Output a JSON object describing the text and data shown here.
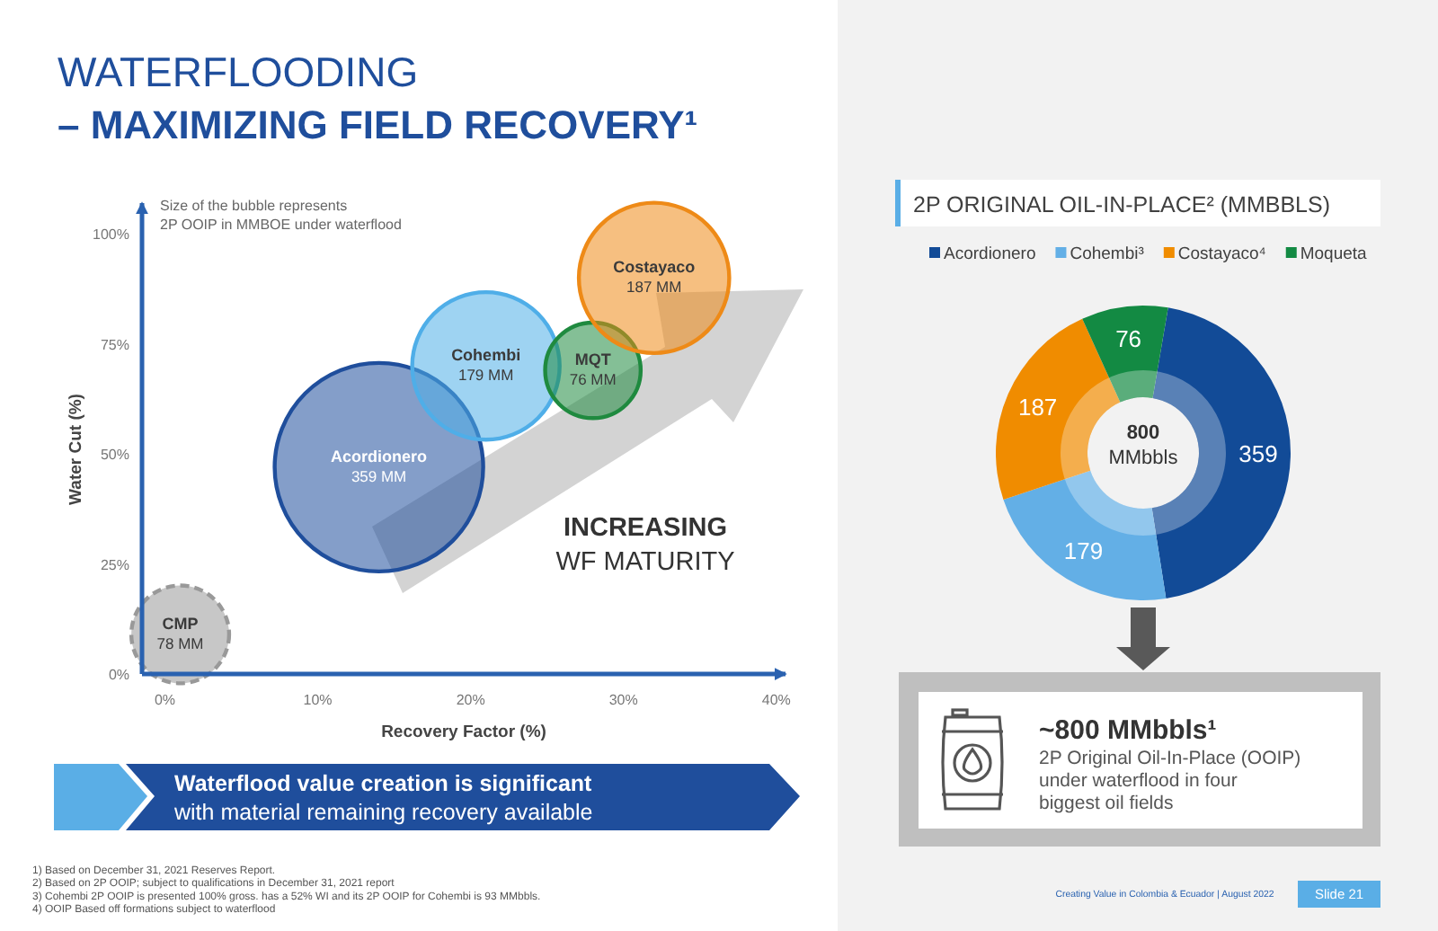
{
  "chart_data": [
    {
      "type": "bubble",
      "title": "WATERFLOODING",
      "subtitle": "– MAXIMIZING FIELD RECOVERY¹",
      "xlabel": "Recovery Factor (%)",
      "ylabel": "Water Cut (%)",
      "xlim": [
        -1.5,
        40.6
      ],
      "xticks": [
        {
          "value": 0,
          "label": "0%"
        },
        {
          "value": 10,
          "label": "10%"
        },
        {
          "value": 20,
          "label": "20%"
        },
        {
          "value": 30,
          "label": "30%"
        },
        {
          "value": 40,
          "label": "40%"
        }
      ],
      "ylim": [
        0,
        107
      ],
      "yticks": [
        {
          "value": 0,
          "label": "0%"
        },
        {
          "value": 25,
          "label": "25%"
        },
        {
          "value": 50,
          "label": "50%"
        },
        {
          "value": 75,
          "label": "75%"
        },
        {
          "value": 100,
          "label": "100%"
        }
      ],
      "series": [
        {
          "name": "CMP",
          "color": "#999999",
          "x": [
            1
          ],
          "values": [
            9
          ],
          "sizes": [
            0.22
          ],
          "line_style": "dashed"
        },
        {
          "name": "Acordionero",
          "color": "#1f4e9c",
          "x": [
            14
          ],
          "values": [
            47
          ],
          "sizes": [
            1
          ]
        },
        {
          "name": "Cohembi",
          "color": "#4faee8",
          "x": [
            21
          ],
          "values": [
            70
          ],
          "sizes": [
            0.5
          ]
        },
        {
          "name": "MQT",
          "color": "#1f8a3f",
          "x": [
            28
          ],
          "values": [
            69
          ],
          "sizes": [
            0.21
          ]
        },
        {
          "name": "Costayaco",
          "color": "#ee8a17",
          "x": [
            32
          ],
          "values": [
            90
          ],
          "sizes": [
            0.52
          ]
        }
      ],
      "annotations": [
        "Size of the bubble represents\n2P OOIP in MMBOE under waterflood",
        "INCREASING\nWF MATURITY",
        "Waterflood value creation is significant\nwith material remaining recovery available",
        "1) Based on December 31, 2021 Reserves Report.",
        "2) Based on 2P OOIP; subject to qualifications in December 31, 2021 report",
        "3) Cohembi 2P OOIP is presented 100% gross. has a 52% WI and its 2P OOIP for Cohembi is 93 MMbbls.",
        "4) OOIP Based off formations subject to waterflood",
        {
          "text": "78 MM",
          "x": 1,
          "y": 9
        },
        {
          "text": "359 MM",
          "x": 14,
          "y": 47
        },
        {
          "text": "179 MM",
          "x": 21,
          "y": 70
        },
        {
          "text": "76 MM",
          "x": 28,
          "y": 69
        },
        {
          "text": "187 MM",
          "x": 32,
          "y": 90
        }
      ]
    },
    {
      "type": "donut",
      "title": "2P ORIGINAL OIL-IN-PLACE² (MMBBLS)",
      "categories": [
        "Acordionero",
        "Cohembi³",
        "Costayaco⁴",
        "Moqueta"
      ],
      "values": [
        359,
        179,
        187,
        76
      ],
      "colors": [
        "#124b97",
        "#63afe6",
        "#f08c00",
        "#138a43"
      ],
      "legend": "top",
      "data_labels": true,
      "annotations": [
        "800\nMMbbls",
        "~800 MMbbls¹",
        "2P Original Oil-In-Place (OOIP)\nunder waterflood in four\nbiggest oil fields",
        "Creating Value in Colombia & Ecuador | August 2022",
        "Slide 21"
      ]
    }
  ]
}
